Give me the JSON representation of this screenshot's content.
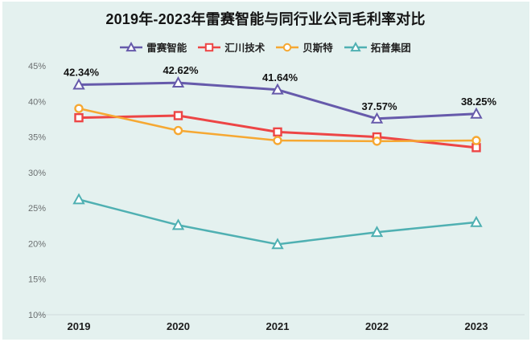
{
  "title": "2019年-2023年雷赛智能与同行业公司毛利率对比",
  "colors": {
    "background": "#e4f1ef",
    "frame": "#ffffff",
    "axis_line": "#cfdbdc",
    "title_text": "#141414",
    "ytick_text": "#6b6f70",
    "xtick_text": "#1c1c1c"
  },
  "chart_data": {
    "type": "line",
    "title": "2019年-2023年雷赛智能与同行业公司毛利率对比",
    "categories": [
      "2019",
      "2020",
      "2021",
      "2022",
      "2023"
    ],
    "series": [
      {
        "name": "雷赛智能",
        "color": "#665aab",
        "marker": "triangle",
        "line_width": 3,
        "values": [
          42.34,
          42.62,
          41.64,
          37.57,
          38.25
        ],
        "labels": [
          "42.34%",
          "42.62%",
          "41.64%",
          "37.57%",
          "38.25%"
        ],
        "show_labels": true
      },
      {
        "name": "汇川技术",
        "color": "#ed4545",
        "marker": "square",
        "line_width": 3,
        "values": [
          37.7,
          38.0,
          35.7,
          35.0,
          33.5
        ],
        "labels": [],
        "show_labels": false
      },
      {
        "name": "贝斯特",
        "color": "#f6a832",
        "marker": "circle",
        "line_width": 2.5,
        "values": [
          39.0,
          35.9,
          34.5,
          34.4,
          34.5
        ],
        "labels": [],
        "show_labels": false
      },
      {
        "name": "拓普集团",
        "color": "#4fb0b2",
        "marker": "triangle",
        "line_width": 2.5,
        "values": [
          26.2,
          22.6,
          19.9,
          21.6,
          23.0
        ],
        "labels": [],
        "show_labels": false
      }
    ],
    "xlabel": "",
    "ylabel": "",
    "ylim": [
      10,
      45
    ],
    "yticks": [
      "45%",
      "40%",
      "35%",
      "30%",
      "25%",
      "20%",
      "15%",
      "10%"
    ],
    "ytick_values": [
      45,
      40,
      35,
      30,
      25,
      20,
      15,
      10
    ],
    "legend_position": "top-center",
    "grid": false,
    "value_unit": "%"
  }
}
